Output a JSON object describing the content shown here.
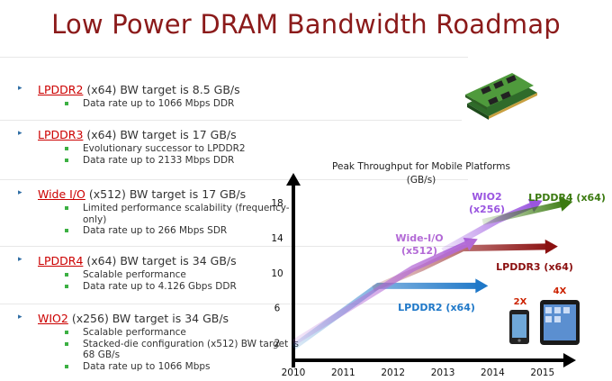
{
  "title": "Low Power DRAM Bandwidth Roadmap",
  "bullets": [
    {
      "name": "LPDDR2",
      "rest": " (x64) BW target is 8.5 GB/s",
      "subs": [
        "Data rate up to 1066 Mbps DDR"
      ]
    },
    {
      "name": "LPDDR3",
      "rest": " (x64) BW target is 17 GB/s",
      "subs": [
        "Evolutionary successor to LPDDR2",
        "Data rate up to 2133 Mbps DDR"
      ]
    },
    {
      "name": "Wide I/O",
      "rest": " (x512) BW target is 17 GB/s",
      "subs": [
        "Limited performance scalability (frequency-only)",
        "Data rate up to 266 Mbps SDR"
      ]
    },
    {
      "name": "LPDDR4",
      "rest": " (x64) BW target is 34 GB/s",
      "subs": [
        "Scalable performance",
        "Data rate up to 4.126 Gbps DDR"
      ]
    },
    {
      "name": "WIO2",
      "rest": " (x256) BW target is 34 GB/s",
      "subs": [
        "Scalable performance",
        "Stacked-die configuration (x512) BW target is 68 GB/s",
        "Data rate up to 1066 Mbps"
      ]
    }
  ],
  "chart_data": {
    "type": "line",
    "title_line1": "Peak Throughput for Mobile Platforms",
    "title_line2": "(GB/s)",
    "x_ticks": [
      "2010",
      "2011",
      "2012",
      "2013",
      "2014",
      "2015"
    ],
    "y_ticks": [
      2,
      6,
      10,
      14,
      18
    ],
    "xlim": [
      2010,
      2015.6
    ],
    "ylim": [
      0,
      21
    ],
    "series": [
      {
        "name": "LPDDR2 (x64)",
        "color": "#1f78c8",
        "points": [
          [
            2010.0,
            1.5
          ],
          [
            2011.7,
            8.5
          ],
          [
            2013.8,
            8.5
          ]
        ]
      },
      {
        "name": "LPDDR3 (x64)",
        "color": "#8b1010",
        "points": [
          [
            2011.6,
            8.2
          ],
          [
            2012.6,
            10.6
          ],
          [
            2013.4,
            12.8
          ],
          [
            2015.2,
            13.0
          ]
        ]
      },
      {
        "name": "Wide-I/O\n(x512)",
        "color": "#b36ad6",
        "points": [
          [
            2010.0,
            2.0
          ],
          [
            2012.4,
            10.5
          ],
          [
            2013.6,
            13.6
          ]
        ]
      },
      {
        "name": "WIO2\n(x256)",
        "color": "#9a55e0",
        "points": [
          [
            2013.0,
            12.5
          ],
          [
            2014.1,
            16.0
          ],
          [
            2014.9,
            18.0
          ]
        ]
      },
      {
        "name": "LPDDR4 (x64)",
        "color": "#3b7a10",
        "points": [
          [
            2013.8,
            15.8
          ],
          [
            2015.5,
            18.0
          ]
        ]
      }
    ],
    "annotations": [
      {
        "text": "2X",
        "color": "#cc2200"
      },
      {
        "text": "4X",
        "color": "#cc2200"
      }
    ]
  }
}
